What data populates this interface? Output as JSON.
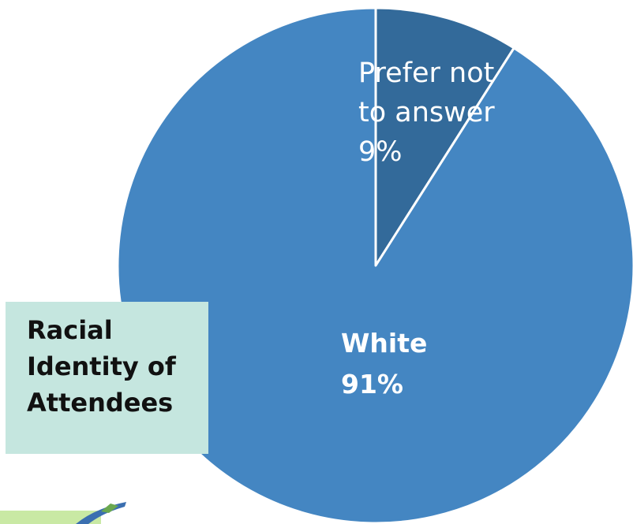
{
  "chart_data": {
    "type": "pie",
    "title": "Racial Identity of Attendees",
    "slices": [
      {
        "label": "Prefer not to answer",
        "value": 9,
        "color": "#336a9a"
      },
      {
        "label": "White",
        "value": 91,
        "color": "#4486c2"
      }
    ],
    "data_labels": {
      "prefer_line1": "Prefer not",
      "prefer_line2": "to answer",
      "prefer_pct": "9%",
      "white_name": "White",
      "white_pct": "91%"
    }
  },
  "title_box": {
    "line1": "Racial",
    "line2": "Identity of",
    "line3": "Attendees"
  },
  "colors": {
    "title_bg": "#c5e6df",
    "slice_border": "#ffffff"
  },
  "logo": {
    "icon": "logo-swoosh-icon"
  }
}
